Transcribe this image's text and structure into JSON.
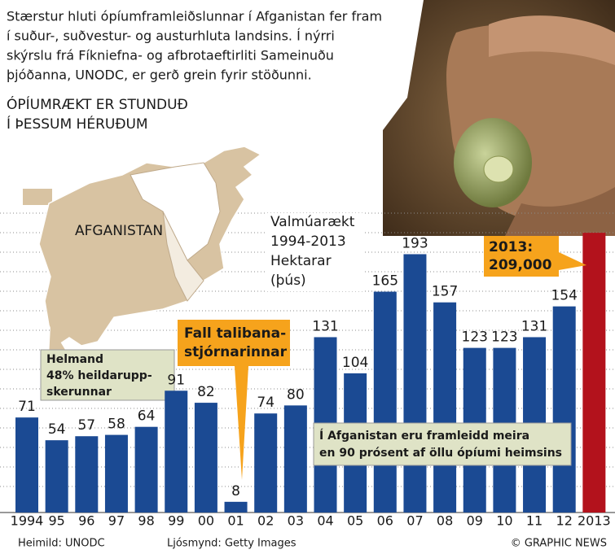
{
  "chart_data": {
    "type": "bar",
    "intro": [
      "Stærstur hluti ópíumframleiðslunnar í Afganistan fer fram",
      "í suður-, suðvestur- og austurhluta landsins. Í nýrri",
      "skýrslu frá Fíkniefna- og afbrotaeftirliti Sameinuðu",
      "þjóðanna, UNODC, er gerð grein fyrir stöðunni."
    ],
    "map_title": [
      "ÓPÍUMRÆKT ER STUNDUÐ",
      "Í ÞESSUM HÉRUÐUM"
    ],
    "map_label": "AFGANISTAN",
    "helmand_note": [
      "Helmand",
      "48% heildarupp-",
      "skerunnar"
    ],
    "y_label": [
      "Valmúarækt",
      "1994-2013",
      "Hektarar",
      "(þús)"
    ],
    "event_note": [
      "Fall talibana-",
      "stjórnarinnar"
    ],
    "share_note": [
      "Í Afganistan eru framleidd meira",
      "en 90 prósent af öllu ópíumi heimsins"
    ],
    "categories": [
      "1994",
      "95",
      "96",
      "97",
      "98",
      "99",
      "00",
      "01",
      "02",
      "03",
      "04",
      "05",
      "06",
      "07",
      "08",
      "09",
      "10",
      "11",
      "12",
      "2013"
    ],
    "values": [
      71,
      54,
      57,
      58,
      64,
      91,
      82,
      8,
      74,
      80,
      131,
      104,
      165,
      193,
      157,
      123,
      123,
      131,
      154,
      209
    ],
    "value_labels": [
      "71",
      "54",
      "57",
      "58",
      "64",
      "91",
      "82",
      "8",
      "74",
      "80",
      "131",
      "104",
      "165",
      "193",
      "157",
      "123",
      "123",
      "131",
      "154",
      "2013: 209,000"
    ],
    "colors": [
      "#1b4a93",
      "#1b4a93",
      "#1b4a93",
      "#1b4a93",
      "#1b4a93",
      "#1b4a93",
      "#1b4a93",
      "#1b4a93",
      "#1b4a93",
      "#1b4a93",
      "#1b4a93",
      "#1b4a93",
      "#1b4a93",
      "#1b4a93",
      "#1b4a93",
      "#1b4a93",
      "#1b4a93",
      "#1b4a93",
      "#1b4a93",
      "#b3121c"
    ],
    "ylim": [
      0,
      234
    ],
    "source": "Heimild: UNODC",
    "photo_credit": "Ljósmynd: Getty Images",
    "credit": "© GRAPHIC NEWS"
  }
}
